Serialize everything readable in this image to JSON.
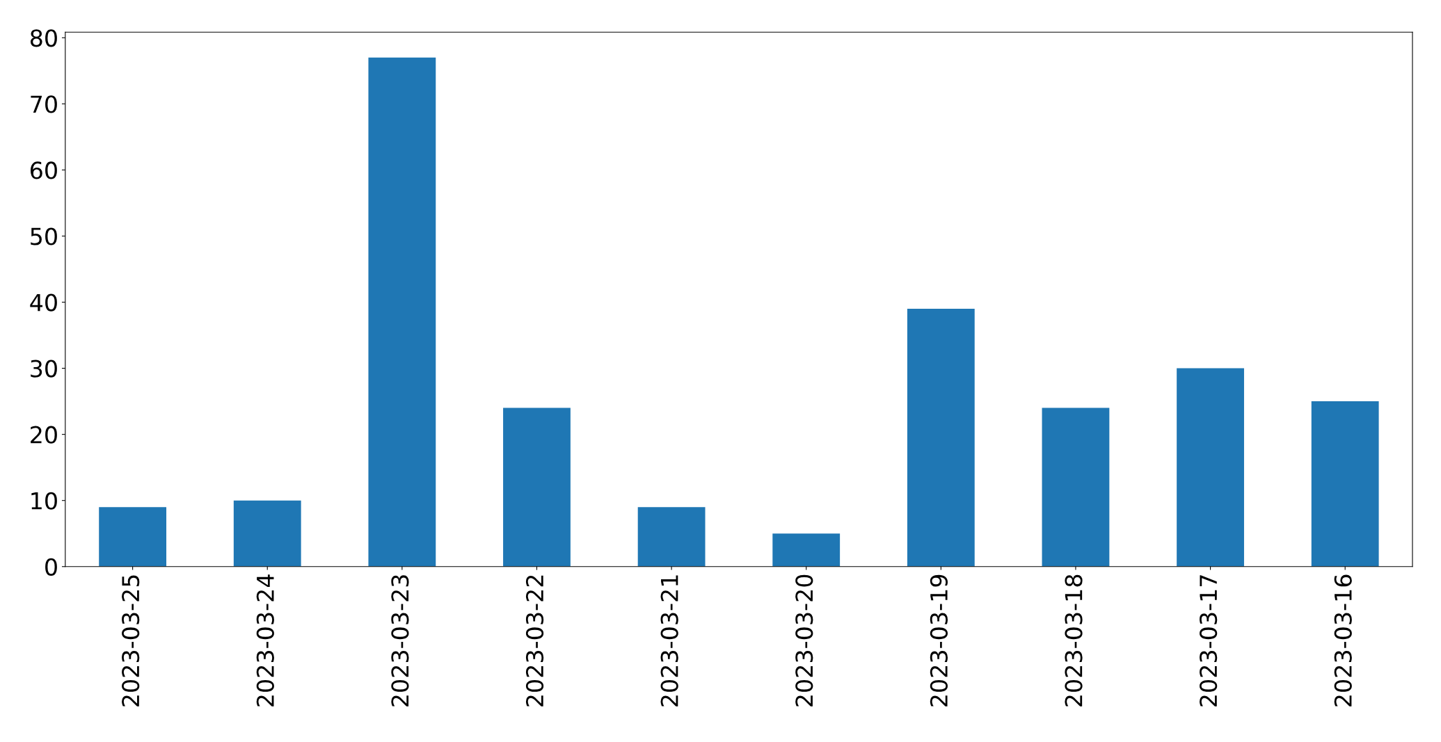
{
  "chart_data": {
    "type": "bar",
    "categories": [
      "2023-03-25",
      "2023-03-24",
      "2023-03-23",
      "2023-03-22",
      "2023-03-21",
      "2023-03-20",
      "2023-03-19",
      "2023-03-18",
      "2023-03-17",
      "2023-03-16"
    ],
    "values": [
      9,
      10,
      77,
      24,
      9,
      5,
      39,
      24,
      30,
      25
    ],
    "color": "#1f77b4",
    "ylim": [
      0,
      80.85
    ],
    "yticks": [
      0,
      10,
      20,
      30,
      40,
      50,
      60,
      70,
      80
    ],
    "grid": false
  }
}
